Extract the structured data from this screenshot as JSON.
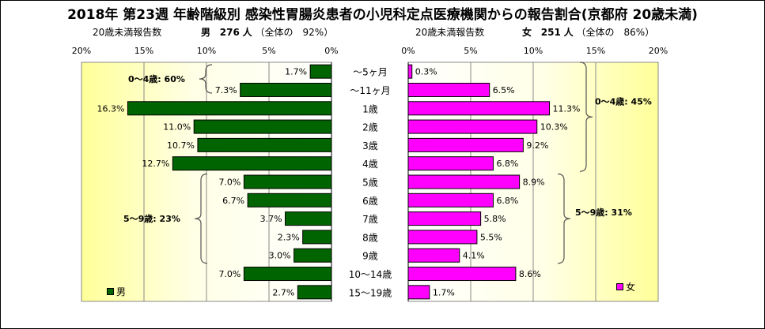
{
  "title": "2018年 第23週 年齢階級別 感染性胃腸炎患者の小児科定点医療機関からの報告割合(京都府 20歳未満)",
  "header": {
    "male_reports_label": "20歳未満報告数",
    "male_sex": "男",
    "male_count": "276",
    "male_unit": "人",
    "male_share": "（全体の　92%）",
    "female_reports_label": "20歳未満報告数",
    "female_sex": "女",
    "female_count": "251",
    "female_unit": "人",
    "female_share": "（全体の　86%）"
  },
  "legend": {
    "male": "男",
    "female": "女"
  },
  "chart_data": {
    "type": "bar",
    "orientation": "horizontal",
    "categories": [
      "〜5ヶ月",
      "〜11ヶ月",
      "1歳",
      "2歳",
      "3歳",
      "4歳",
      "5歳",
      "6歳",
      "7歳",
      "8歳",
      "9歳",
      "10〜14歳",
      "15〜19歳"
    ],
    "series": [
      {
        "name": "男",
        "color": "#006400",
        "values": [
          1.7,
          7.3,
          16.3,
          11.0,
          10.7,
          12.7,
          7.0,
          6.7,
          3.7,
          2.3,
          3.0,
          7.0,
          2.7
        ],
        "labels": [
          "1.7%",
          "7.3%",
          "16.3%",
          "11.0%",
          "10.7%",
          "12.7%",
          "7.0%",
          "6.7%",
          "3.7%",
          "2.3%",
          "3.0%",
          "7.0%",
          "2.7%"
        ]
      },
      {
        "name": "女",
        "color": "#ff00ff",
        "values": [
          0.3,
          6.5,
          11.3,
          10.3,
          9.2,
          6.8,
          8.9,
          6.8,
          5.8,
          5.5,
          4.1,
          8.6,
          1.7
        ],
        "labels": [
          "0.3%",
          "6.5%",
          "11.3%",
          "10.3%",
          "9.2%",
          "6.8%",
          "8.9%",
          "6.8%",
          "5.8%",
          "5.5%",
          "4.1%",
          "8.6%",
          "1.7%"
        ]
      }
    ],
    "xlim": [
      0,
      20
    ],
    "ticks": [
      "0%",
      "5%",
      "10%",
      "15%",
      "20%"
    ],
    "male_ticks_reversed": [
      "20%",
      "15%",
      "10%",
      "5%",
      "0%"
    ],
    "annotations": {
      "male_0_4": "0〜4歳: 60%",
      "male_5_9": "5〜9歳: 23%",
      "female_0_4": "0〜4歳: 45%",
      "female_5_9": "5〜9歳: 31%"
    },
    "plot_background": "#ffffe6",
    "highlight_background": "#ffff99"
  }
}
